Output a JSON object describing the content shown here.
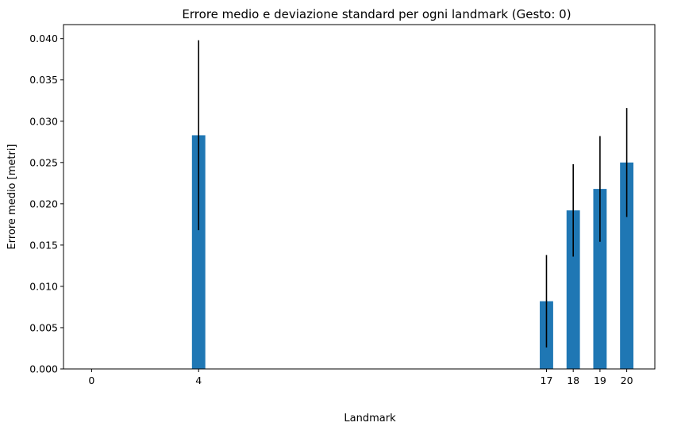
{
  "chart_data": {
    "type": "bar",
    "title": "Errore medio e deviazione standard per ogni landmark (Gesto: 0)",
    "xlabel": "Landmark",
    "ylabel": "Errore medio [metri]",
    "x": [
      0,
      4,
      17,
      18,
      19,
      20
    ],
    "values": [
      0.0,
      0.0283,
      0.0082,
      0.0192,
      0.0218,
      0.025
    ],
    "errors": [
      0.0,
      0.0115,
      0.0056,
      0.0056,
      0.0064,
      0.0066
    ],
    "x_ticks": [
      "0",
      "4",
      "17",
      "18",
      "19",
      "20"
    ],
    "y_ticks": [
      "0.000",
      "0.005",
      "0.010",
      "0.015",
      "0.020",
      "0.025",
      "0.030",
      "0.035",
      "0.040"
    ],
    "xlim": [
      -1.05,
      21.05
    ],
    "ylim": [
      0,
      0.0417
    ],
    "bar_color": "#1f77b4",
    "error_color": "#000000",
    "grid": false,
    "legend": "none"
  }
}
